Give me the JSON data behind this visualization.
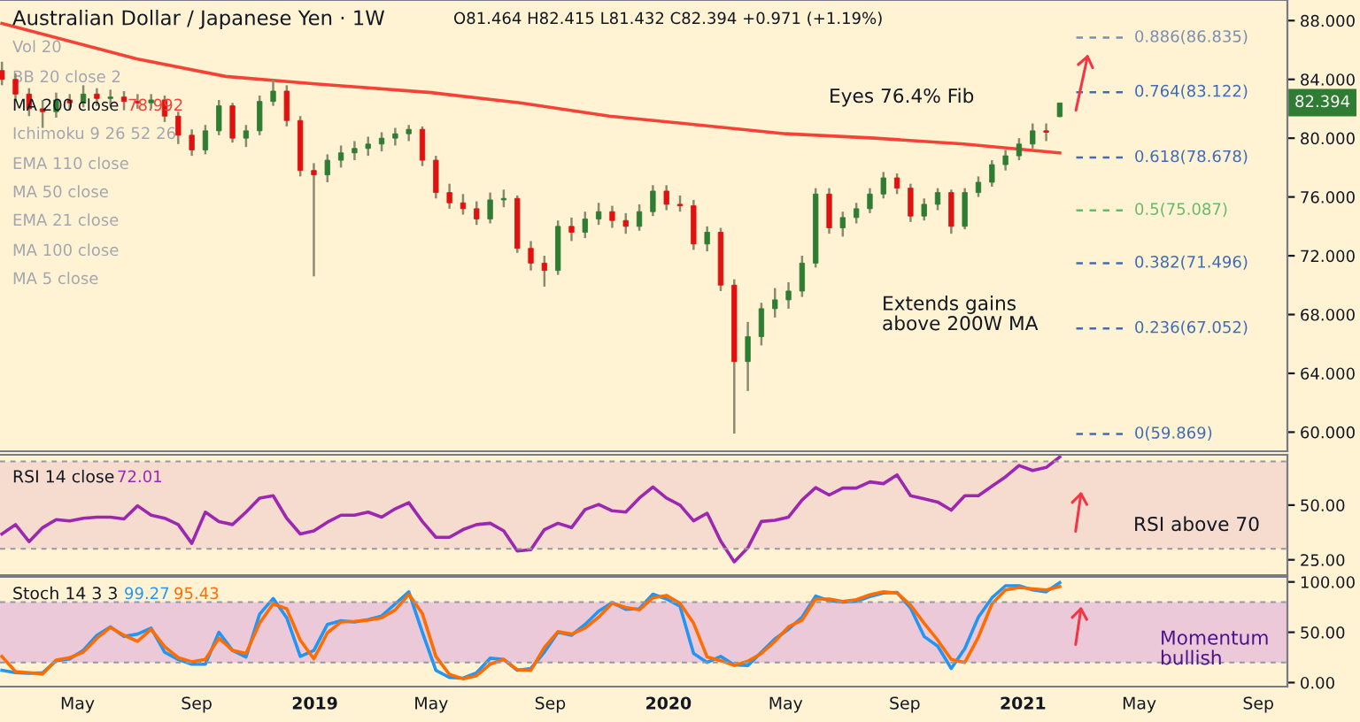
{
  "chart_data": [
    {
      "type": "candlestick",
      "title": "Australian Dollar / Japanese Yen · 1W",
      "subtitle": "O81.464 H82.415 L81.432 C82.394 +0.971 (+1.19%)",
      "x": [
        "2018-02-12",
        "2018-02-26",
        "2018-03-12",
        "2018-03-26",
        "2018-04-09",
        "2018-04-23",
        "2018-05-07",
        "2018-05-21",
        "2018-06-04",
        "2018-06-18",
        "2018-07-02",
        "2018-07-16",
        "2018-07-30",
        "2018-08-13",
        "2018-08-27",
        "2018-09-10",
        "2018-09-24",
        "2018-10-08",
        "2018-10-22",
        "2018-11-05",
        "2018-11-19",
        "2018-12-03",
        "2018-12-17",
        "2018-12-31",
        "2019-01-14",
        "2019-01-28",
        "2019-02-11",
        "2019-02-25",
        "2019-03-11",
        "2019-03-25",
        "2019-04-08",
        "2019-04-22",
        "2019-05-06",
        "2019-05-20",
        "2019-06-03",
        "2019-06-17",
        "2019-07-01",
        "2019-07-15",
        "2019-07-29",
        "2019-08-12",
        "2019-08-26",
        "2019-09-09",
        "2019-09-23",
        "2019-10-07",
        "2019-10-21",
        "2019-11-04",
        "2019-11-18",
        "2019-12-02",
        "2019-12-16",
        "2019-12-30",
        "2020-01-13",
        "2020-01-27",
        "2020-02-10",
        "2020-02-24",
        "2020-03-09",
        "2020-03-23",
        "2020-04-06",
        "2020-04-20",
        "2020-05-04",
        "2020-05-18",
        "2020-06-01",
        "2020-06-15",
        "2020-06-29",
        "2020-07-13",
        "2020-07-27",
        "2020-08-10",
        "2020-08-24",
        "2020-09-07",
        "2020-09-21",
        "2020-10-05",
        "2020-10-19",
        "2020-11-02",
        "2020-11-16",
        "2020-11-30",
        "2020-12-14",
        "2020-12-28",
        "2021-01-11",
        "2021-01-25",
        "2021-02-08"
      ],
      "ohlc": [
        [
          84.6,
          85.2,
          83.6,
          84.0
        ],
        [
          84.0,
          84.4,
          82.6,
          83.0
        ],
        [
          83.0,
          83.4,
          81.5,
          82.0
        ],
        [
          82.0,
          82.6,
          80.7,
          81.8
        ],
        [
          81.8,
          83.1,
          81.4,
          82.6
        ],
        [
          82.6,
          83.0,
          81.9,
          82.4
        ],
        [
          82.4,
          83.6,
          82.1,
          83.0
        ],
        [
          83.0,
          83.4,
          82.2,
          82.7
        ],
        [
          82.7,
          83.3,
          82.2,
          82.8
        ],
        [
          82.8,
          83.2,
          81.9,
          82.5
        ],
        [
          82.5,
          83.0,
          82.0,
          82.4
        ],
        [
          82.4,
          83.0,
          82.0,
          82.6
        ],
        [
          82.6,
          82.9,
          81.1,
          81.5
        ],
        [
          81.5,
          81.8,
          79.6,
          80.2
        ],
        [
          80.2,
          80.6,
          78.8,
          79.2
        ],
        [
          79.2,
          80.9,
          78.9,
          80.5
        ],
        [
          80.5,
          82.6,
          80.2,
          82.2
        ],
        [
          82.2,
          82.4,
          79.7,
          80.0
        ],
        [
          80.0,
          80.9,
          79.4,
          80.5
        ],
        [
          80.5,
          82.9,
          80.2,
          82.5
        ],
        [
          82.5,
          84.0,
          82.2,
          83.2
        ],
        [
          83.2,
          83.6,
          80.8,
          81.2
        ],
        [
          81.2,
          81.5,
          77.4,
          77.8
        ],
        [
          77.8,
          78.3,
          70.6,
          77.5
        ],
        [
          77.5,
          78.9,
          77.0,
          78.5
        ],
        [
          78.5,
          79.5,
          78.0,
          79.0
        ],
        [
          79.0,
          79.8,
          78.5,
          79.3
        ],
        [
          79.3,
          80.1,
          78.8,
          79.6
        ],
        [
          79.6,
          80.4,
          79.1,
          80.0
        ],
        [
          80.0,
          80.7,
          79.5,
          80.3
        ],
        [
          80.3,
          80.9,
          79.8,
          80.6
        ],
        [
          80.6,
          80.8,
          78.1,
          78.5
        ],
        [
          78.5,
          78.8,
          75.9,
          76.3
        ],
        [
          76.3,
          76.9,
          75.2,
          75.6
        ],
        [
          75.6,
          76.2,
          74.8,
          75.2
        ],
        [
          75.2,
          75.7,
          74.1,
          74.5
        ],
        [
          74.5,
          76.3,
          74.2,
          75.8
        ],
        [
          75.8,
          76.5,
          75.3,
          75.9
        ],
        [
          75.9,
          76.1,
          72.2,
          72.5
        ],
        [
          72.5,
          73.0,
          71.0,
          71.5
        ],
        [
          71.5,
          72.0,
          69.9,
          71.0
        ],
        [
          71.0,
          74.4,
          70.7,
          74.0
        ],
        [
          74.0,
          74.6,
          73.0,
          73.6
        ],
        [
          73.6,
          75.0,
          73.2,
          74.5
        ],
        [
          74.5,
          75.6,
          74.1,
          75.0
        ],
        [
          75.0,
          75.4,
          73.9,
          74.4
        ],
        [
          74.4,
          74.9,
          73.5,
          74.0
        ],
        [
          74.0,
          75.5,
          73.7,
          75.0
        ],
        [
          75.0,
          76.8,
          74.7,
          76.4
        ],
        [
          76.4,
          76.8,
          75.1,
          75.5
        ],
        [
          75.5,
          76.1,
          75.0,
          75.4
        ],
        [
          75.4,
          75.8,
          72.4,
          72.8
        ],
        [
          72.8,
          74.0,
          72.3,
          73.6
        ],
        [
          73.6,
          73.9,
          69.6,
          70.0
        ],
        [
          70.0,
          70.4,
          59.9,
          64.8
        ],
        [
          64.8,
          67.5,
          62.8,
          66.5
        ],
        [
          66.5,
          68.8,
          65.9,
          68.4
        ],
        [
          68.4,
          69.8,
          67.8,
          69.0
        ],
        [
          69.0,
          70.2,
          68.4,
          69.6
        ],
        [
          69.6,
          72.0,
          69.2,
          71.5
        ],
        [
          71.5,
          76.6,
          71.2,
          76.2
        ],
        [
          76.2,
          76.6,
          73.5,
          73.9
        ],
        [
          73.9,
          75.0,
          73.3,
          74.6
        ],
        [
          74.6,
          75.6,
          74.2,
          75.2
        ],
        [
          75.2,
          76.6,
          74.9,
          76.2
        ],
        [
          76.2,
          77.7,
          75.9,
          77.3
        ],
        [
          77.3,
          77.6,
          76.2,
          76.6
        ],
        [
          76.6,
          76.9,
          74.3,
          74.7
        ],
        [
          74.7,
          75.9,
          74.4,
          75.5
        ],
        [
          75.5,
          76.6,
          75.1,
          76.3
        ],
        [
          76.3,
          76.5,
          73.5,
          74.0
        ],
        [
          74.0,
          76.6,
          73.8,
          76.3
        ],
        [
          76.3,
          77.4,
          76.0,
          77.0
        ],
        [
          77.0,
          78.5,
          76.7,
          78.2
        ],
        [
          78.2,
          79.2,
          77.8,
          78.8
        ],
        [
          78.8,
          80.0,
          78.5,
          79.6
        ],
        [
          79.6,
          81.0,
          79.3,
          80.5
        ],
        [
          80.5,
          81.0,
          79.8,
          80.4
        ],
        [
          81.464,
          82.415,
          81.432,
          82.394
        ]
      ],
      "colors": [
        "#e0120f",
        "#e0120f",
        "#e0120f",
        "#e0120f",
        "#2e7d32",
        "#e0120f",
        "#2e7d32",
        "#e0120f",
        "#2e7d32",
        "#e0120f",
        "#e0120f",
        "#2e7d32",
        "#e0120f",
        "#e0120f",
        "#e0120f",
        "#2e7d32",
        "#2e7d32",
        "#e0120f",
        "#2e7d32",
        "#2e7d32",
        "#2e7d32",
        "#e0120f",
        "#e0120f",
        "#e0120f",
        "#2e7d32",
        "#2e7d32",
        "#2e7d32",
        "#2e7d32",
        "#2e7d32",
        "#2e7d32",
        "#2e7d32",
        "#e0120f",
        "#e0120f",
        "#e0120f",
        "#e0120f",
        "#e0120f",
        "#2e7d32",
        "#2e7d32",
        "#e0120f",
        "#e0120f",
        "#e0120f",
        "#2e7d32",
        "#e0120f",
        "#2e7d32",
        "#2e7d32",
        "#e0120f",
        "#e0120f",
        "#2e7d32",
        "#2e7d32",
        "#e0120f",
        "#e0120f",
        "#e0120f",
        "#2e7d32",
        "#e0120f",
        "#e0120f",
        "#2e7d32",
        "#2e7d32",
        "#2e7d32",
        "#2e7d32",
        "#2e7d32",
        "#2e7d32",
        "#e0120f",
        "#2e7d32",
        "#2e7d32",
        "#2e7d32",
        "#2e7d32",
        "#e0120f",
        "#e0120f",
        "#2e7d32",
        "#2e7d32",
        "#e0120f",
        "#2e7d32",
        "#2e7d32",
        "#2e7d32",
        "#2e7d32",
        "#2e7d32",
        "#2e7d32",
        "#e0120f",
        "#2e7d32"
      ],
      "series": [
        {
          "type": "line",
          "color": "#f44336",
          "x": [
            "2018-02-12",
            "2018-07-01",
            "2018-10-01",
            "2019-01-01",
            "2019-05-01",
            "2019-08-01",
            "2019-11-01",
            "2020-02-01",
            "2020-05-01",
            "2020-08-01",
            "2020-11-01",
            "2021-02-08"
          ],
          "values": [
            87.8,
            85.4,
            84.2,
            83.7,
            83.1,
            82.4,
            81.5,
            80.9,
            80.3,
            80.0,
            79.6,
            78.992
          ]
        }
      ],
      "xlim": [
        "2018-02-10",
        "2021-10-01"
      ],
      "ylim": [
        58.7,
        89.4
      ],
      "yticks": [
        {
          "value": 60,
          "label": "60.000"
        },
        {
          "value": 64,
          "label": "64.000"
        },
        {
          "value": 68,
          "label": "68.000"
        },
        {
          "value": 72,
          "label": "72.000"
        },
        {
          "value": 76,
          "label": "76.000"
        },
        {
          "value": 80,
          "label": "80.000"
        },
        {
          "value": 84,
          "label": "84.000"
        },
        {
          "value": 88,
          "label": "88.000"
        }
      ],
      "tick_labels": "y",
      "ref_lines": [
        {
          "axis": "y",
          "value": 86.835,
          "label": "0.886(86.835)",
          "color": "#7b8fb0",
          "line_style": "dashed"
        },
        {
          "axis": "y",
          "value": 83.122,
          "label": "0.764(83.122)",
          "color": "#3f6db5",
          "line_style": "dashed"
        },
        {
          "axis": "y",
          "value": 78.678,
          "label": "0.618(78.678)",
          "color": "#3f6db5",
          "line_style": "dashed"
        },
        {
          "axis": "y",
          "value": 75.087,
          "label": "0.5(75.087)",
          "color": "#66bb6a",
          "line_style": "dashed"
        },
        {
          "axis": "y",
          "value": 71.496,
          "label": "0.382(71.496)",
          "color": "#3f6db5",
          "line_style": "dashed"
        },
        {
          "axis": "y",
          "value": 67.052,
          "label": "0.236(67.052)",
          "color": "#3f6db5",
          "line_style": "dashed"
        },
        {
          "axis": "y",
          "value": 59.869,
          "label": "0(59.869)",
          "color": "#3f6db5",
          "line_style": "dashed"
        }
      ],
      "annotations": [
        "Vol 20",
        "BB 20 close 2",
        "MA 200 close",
        "78.992",
        "Ichimoku 9 26 52 26",
        "EMA 110 close",
        "MA 50 close",
        "EMA 21 close",
        "MA 100 close",
        "MA 5 close",
        "Eyes 76.4% Fib",
        "Extends gains\nabove 200W MA",
        "82.394"
      ]
    },
    {
      "type": "line",
      "title": "RSI 14 close",
      "x": [
        "2018-02-12",
        "2018-02-26",
        "2018-03-12",
        "2018-03-26",
        "2018-04-09",
        "2018-04-23",
        "2018-05-07",
        "2018-05-21",
        "2018-06-04",
        "2018-06-18",
        "2018-07-02",
        "2018-07-16",
        "2018-07-30",
        "2018-08-13",
        "2018-08-27",
        "2018-09-10",
        "2018-09-24",
        "2018-10-08",
        "2018-10-22",
        "2018-11-05",
        "2018-11-19",
        "2018-12-03",
        "2018-12-17",
        "2018-12-31",
        "2019-01-14",
        "2019-01-28",
        "2019-02-11",
        "2019-02-25",
        "2019-03-11",
        "2019-03-25",
        "2019-04-08",
        "2019-04-22",
        "2019-05-06",
        "2019-05-20",
        "2019-06-03",
        "2019-06-17",
        "2019-07-01",
        "2019-07-15",
        "2019-07-29",
        "2019-08-12",
        "2019-08-26",
        "2019-09-09",
        "2019-09-23",
        "2019-10-07",
        "2019-10-21",
        "2019-11-04",
        "2019-11-18",
        "2019-12-02",
        "2019-12-16",
        "2019-12-30",
        "2020-01-13",
        "2020-01-27",
        "2020-02-10",
        "2020-02-24",
        "2020-03-09",
        "2020-03-23",
        "2020-04-06",
        "2020-04-20",
        "2020-05-04",
        "2020-05-18",
        "2020-06-01",
        "2020-06-15",
        "2020-06-29",
        "2020-07-13",
        "2020-07-27",
        "2020-08-10",
        "2020-08-24",
        "2020-09-07",
        "2020-09-21",
        "2020-10-05",
        "2020-10-19",
        "2020-11-02",
        "2020-11-16",
        "2020-11-30",
        "2020-12-14",
        "2020-12-28",
        "2021-01-11",
        "2021-01-25",
        "2021-02-08"
      ],
      "series": [
        {
          "color": "#9c27b0",
          "values": [
            36.8,
            41.1,
            33.3,
            39.7,
            43.4,
            42.8,
            44.0,
            44.5,
            44.5,
            43.7,
            49.7,
            45.4,
            44.0,
            41.1,
            32.5,
            46.8,
            42.5,
            41.1,
            46.8,
            53.2,
            54.3,
            44.0,
            36.8,
            38.2,
            42.2,
            45.4,
            45.4,
            46.8,
            44.5,
            48.3,
            51.1,
            42.5,
            35.3,
            35.3,
            38.8,
            41.1,
            41.7,
            38.2,
            29.0,
            29.6,
            38.8,
            41.7,
            39.7,
            48.0,
            50.3,
            47.4,
            46.8,
            53.2,
            58.3,
            53.2,
            50.0,
            42.8,
            46.3,
            33.6,
            24.1,
            30.5,
            42.5,
            43.1,
            44.5,
            52.3,
            58.0,
            54.6,
            57.8,
            57.8,
            60.6,
            59.8,
            63.8,
            54.3,
            52.9,
            51.4,
            47.7,
            54.3,
            54.3,
            58.6,
            62.9,
            68.1,
            65.8,
            67.2,
            72.01
          ]
        }
      ],
      "xlim": [
        "2018-02-10",
        "2021-10-01"
      ],
      "ylim": [
        18,
        73
      ],
      "yticks": [
        {
          "value": 25,
          "label": "25.00"
        },
        {
          "value": 50,
          "label": "50.00"
        }
      ],
      "tick_labels": "y",
      "bands": [
        {
          "axis": "y",
          "from": 30,
          "to": 70,
          "color": "#f6dccf"
        }
      ],
      "ref_lines": [
        {
          "axis": "y",
          "value": 70,
          "color": "#9598a1",
          "line_style": "dashed"
        },
        {
          "axis": "y",
          "value": 30,
          "color": "#9598a1",
          "line_style": "dashed"
        }
      ],
      "annotations": [
        "72.01",
        "RSI above 70"
      ]
    },
    {
      "type": "line",
      "title": "Stoch 14 3 3",
      "x": [
        "2018-02-12",
        "2018-02-26",
        "2018-03-12",
        "2018-03-26",
        "2018-04-09",
        "2018-04-23",
        "2018-05-07",
        "2018-05-21",
        "2018-06-04",
        "2018-06-18",
        "2018-07-02",
        "2018-07-16",
        "2018-07-30",
        "2018-08-13",
        "2018-08-27",
        "2018-09-10",
        "2018-09-24",
        "2018-10-08",
        "2018-10-22",
        "2018-11-05",
        "2018-11-19",
        "2018-12-03",
        "2018-12-17",
        "2018-12-31",
        "2019-01-14",
        "2019-01-28",
        "2019-02-11",
        "2019-02-25",
        "2019-03-11",
        "2019-03-25",
        "2019-04-08",
        "2019-04-22",
        "2019-05-06",
        "2019-05-20",
        "2019-06-03",
        "2019-06-17",
        "2019-07-01",
        "2019-07-15",
        "2019-07-29",
        "2019-08-12",
        "2019-08-26",
        "2019-09-09",
        "2019-09-23",
        "2019-10-07",
        "2019-10-21",
        "2019-11-04",
        "2019-11-18",
        "2019-12-02",
        "2019-12-16",
        "2019-12-30",
        "2020-01-13",
        "2020-01-27",
        "2020-02-10",
        "2020-02-24",
        "2020-03-09",
        "2020-03-23",
        "2020-04-06",
        "2020-04-20",
        "2020-05-04",
        "2020-05-18",
        "2020-06-01",
        "2020-06-15",
        "2020-06-29",
        "2020-07-13",
        "2020-07-27",
        "2020-08-10",
        "2020-08-24",
        "2020-09-07",
        "2020-09-21",
        "2020-10-05",
        "2020-10-19",
        "2020-11-02",
        "2020-11-16",
        "2020-11-30",
        "2020-12-14",
        "2020-12-28",
        "2021-01-11",
        "2021-01-25",
        "2021-02-08"
      ],
      "series": [
        {
          "color": "#2196f3",
          "values": [
            12.2,
            9.8,
            9.2,
            9.8,
            21.8,
            23.6,
            32,
            47,
            55.4,
            45.8,
            48.2,
            54.2,
            30.2,
            23,
            18.2,
            18.2,
            50,
            32,
            25.4,
            68,
            83.6,
            64.4,
            26,
            32,
            57.8,
            61.4,
            60.2,
            62.6,
            66.2,
            78.2,
            90.2,
            50,
            12.2,
            5,
            4.4,
            9.8,
            24.2,
            23,
            12.2,
            14,
            30.2,
            50,
            47,
            57.8,
            71,
            79.4,
            72.8,
            73.4,
            87.8,
            83,
            75.8,
            29,
            20,
            26,
            17.6,
            17,
            30.2,
            43.4,
            53,
            65,
            86,
            81.2,
            80,
            80.6,
            85.4,
            89,
            89.6,
            74,
            45.8,
            36.2,
            14,
            33.8,
            65,
            84.2,
            96.2,
            96.2,
            92,
            90.2,
            99.27
          ]
        },
        {
          "color": "#ff6d00",
          "values": [
            26,
            11,
            9.8,
            8.6,
            22.4,
            24.8,
            30.2,
            44,
            54.8,
            47,
            41,
            53,
            35.6,
            24.8,
            20.6,
            23,
            44,
            32,
            29,
            59,
            78.2,
            73.4,
            42.2,
            23.6,
            49.4,
            60.2,
            60.8,
            62,
            64.4,
            72.2,
            87.8,
            68.6,
            26,
            8,
            3.8,
            6.8,
            18.2,
            23,
            12.8,
            12.2,
            35,
            50.6,
            48.2,
            54.2,
            65,
            78.8,
            74.6,
            72.2,
            84.2,
            86.6,
            78.8,
            59,
            25.4,
            21.8,
            17,
            21.2,
            29,
            41,
            55.4,
            62,
            83,
            83,
            80.6,
            82.4,
            87.2,
            90.2,
            89,
            77,
            59,
            42.2,
            23,
            20,
            45.2,
            78.2,
            92,
            94.4,
            93.2,
            92,
            95.43
          ]
        }
      ],
      "xlim": [
        "2018-02-10",
        "2021-10-01"
      ],
      "ylim": [
        -4,
        105
      ],
      "xticks": [
        {
          "value": "2018-05-01",
          "label": "May"
        },
        {
          "value": "2018-09-01",
          "label": "Sep"
        },
        {
          "value": "2019-01-01",
          "label": "2019"
        },
        {
          "value": "2019-05-01",
          "label": "May"
        },
        {
          "value": "2019-09-01",
          "label": "Sep"
        },
        {
          "value": "2020-01-01",
          "label": "2020"
        },
        {
          "value": "2020-05-01",
          "label": "May"
        },
        {
          "value": "2020-09-01",
          "label": "Sep"
        },
        {
          "value": "2021-01-01",
          "label": "2021"
        },
        {
          "value": "2021-05-01",
          "label": "May"
        },
        {
          "value": "2021-09-01",
          "label": "Sep"
        }
      ],
      "yticks": [
        {
          "value": 0,
          "label": "0.00"
        },
        {
          "value": 50,
          "label": "50.00"
        },
        {
          "value": 100,
          "label": "100.00"
        }
      ],
      "bands": [
        {
          "axis": "y",
          "from": 20,
          "to": 80,
          "color": "#ecc9d9"
        }
      ],
      "ref_lines": [
        {
          "axis": "y",
          "value": 80,
          "color": "#9598a1",
          "line_style": "dashed"
        },
        {
          "axis": "y",
          "value": 20,
          "color": "#9598a1",
          "line_style": "dashed"
        }
      ],
      "annotations": [
        "99.27",
        "95.43",
        "Momentum\nbullish"
      ]
    }
  ]
}
